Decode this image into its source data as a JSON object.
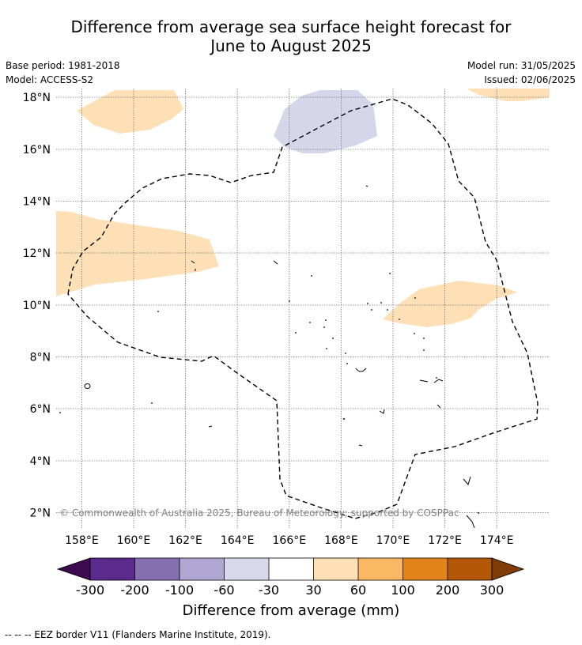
{
  "title": {
    "line1": "Difference from average sea surface height forecast for",
    "line2": "June to August 2025"
  },
  "meta": {
    "base_period": "Base period: 1981-2018",
    "model": "Model: ACCESS-S2",
    "model_run": "Model run: 31/05/2025",
    "issued": "Issued: 02/06/2025"
  },
  "map": {
    "lon_labels": [
      "158°E",
      "160°E",
      "162°E",
      "164°E",
      "166°E",
      "168°E",
      "170°E",
      "172°E",
      "174°E"
    ],
    "lat_labels": [
      "18°N",
      "16°N",
      "14°N",
      "12°N",
      "10°N",
      "8°N",
      "6°N",
      "4°N",
      "2°N"
    ],
    "copyright": "© Commonwealth of Australia 2025, Bureau of Meteorology; supported by COSPPac"
  },
  "legend": {
    "tick_labels": [
      "-300",
      "-200",
      "-100",
      "-60",
      "-30",
      "30",
      "60",
      "100",
      "200",
      "300"
    ],
    "colors": [
      "#3b0a4f",
      "#5a2a8c",
      "#8470b0",
      "#b0a8d2",
      "#d9d9ec",
      "#ffffff",
      "#fde0b6",
      "#fbb862",
      "#e2841a",
      "#b35806",
      "#7f3b08"
    ],
    "label": "Difference from average (mm)"
  },
  "footnote": "-- -- -- EEZ border V11 (Flanders Marine Institute, 2019)."
}
